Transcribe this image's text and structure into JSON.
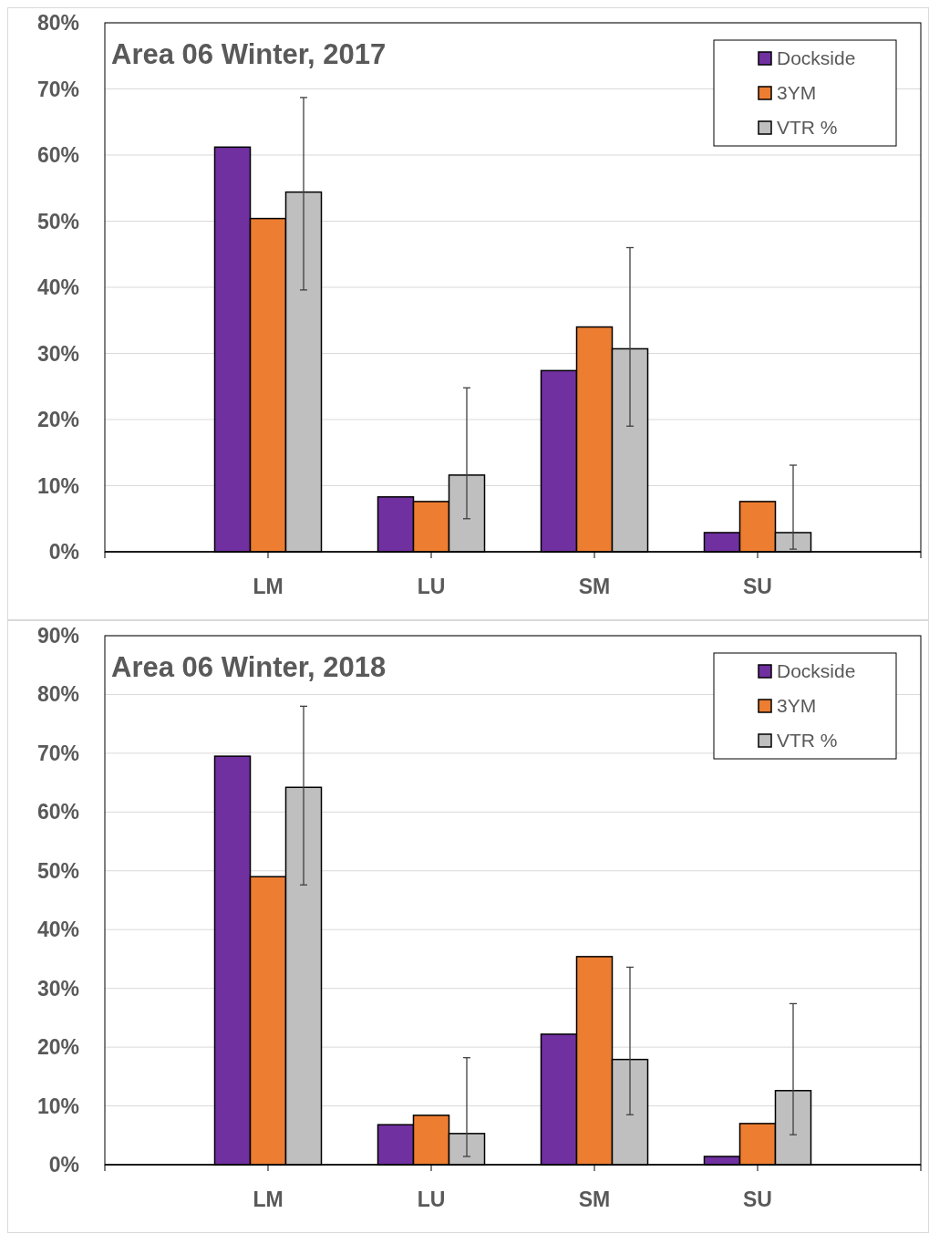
{
  "chart_data": [
    {
      "type": "bar",
      "title": "Area  06  Winter,  2017",
      "categories": [
        "LM",
        "LU",
        "SM",
        "SU"
      ],
      "series": [
        {
          "name": "Dockside",
          "color": "#7030a0",
          "values": [
            61.2,
            8.3,
            27.4,
            2.9
          ]
        },
        {
          "name": "3YM",
          "color": "#ed7d31",
          "values": [
            50.4,
            7.6,
            34.0,
            7.6
          ]
        },
        {
          "name": "VTR %",
          "color": "#bfbfbf",
          "values": [
            54.4,
            11.6,
            30.7,
            2.9
          ],
          "errors": [
            [
              39.6,
              68.7
            ],
            [
              5.0,
              24.8
            ],
            [
              19.0,
              46.0
            ],
            [
              0.4,
              13.1
            ]
          ]
        }
      ],
      "ylim": [
        0,
        80
      ],
      "yticks": [
        {
          "value": 0,
          "label": "0%"
        },
        {
          "value": 10,
          "label": "10%"
        },
        {
          "value": 20,
          "label": "20%"
        },
        {
          "value": 30,
          "label": "30%"
        },
        {
          "value": 40,
          "label": "40%"
        },
        {
          "value": 50,
          "label": "50%"
        },
        {
          "value": 60,
          "label": "60%"
        },
        {
          "value": 70,
          "label": "70%"
        },
        {
          "value": 80,
          "label": "80%"
        }
      ],
      "grid": "y",
      "legend": "top right"
    },
    {
      "type": "bar",
      "title": "Area  06  Winter,  2018",
      "categories": [
        "LM",
        "LU",
        "SM",
        "SU"
      ],
      "series": [
        {
          "name": "Dockside",
          "color": "#7030a0",
          "values": [
            69.5,
            6.8,
            22.2,
            1.4
          ]
        },
        {
          "name": "3YM",
          "color": "#ed7d31",
          "values": [
            49.0,
            8.4,
            35.4,
            7.0
          ]
        },
        {
          "name": "VTR %",
          "color": "#bfbfbf",
          "values": [
            64.2,
            5.3,
            17.9,
            12.6
          ],
          "errors": [
            [
              47.6,
              78.0
            ],
            [
              1.4,
              18.2
            ],
            [
              8.5,
              33.6
            ],
            [
              5.1,
              27.4
            ]
          ]
        }
      ],
      "ylim": [
        0,
        90
      ],
      "yticks": [
        {
          "value": 0,
          "label": "0%"
        },
        {
          "value": 10,
          "label": "10%"
        },
        {
          "value": 20,
          "label": "20%"
        },
        {
          "value": 30,
          "label": "30%"
        },
        {
          "value": 40,
          "label": "40%"
        },
        {
          "value": 50,
          "label": "50%"
        },
        {
          "value": 60,
          "label": "60%"
        },
        {
          "value": 70,
          "label": "70%"
        },
        {
          "value": 80,
          "label": "80%"
        },
        {
          "value": 90,
          "label": "90%"
        }
      ],
      "grid": "y",
      "legend": "top right"
    }
  ]
}
